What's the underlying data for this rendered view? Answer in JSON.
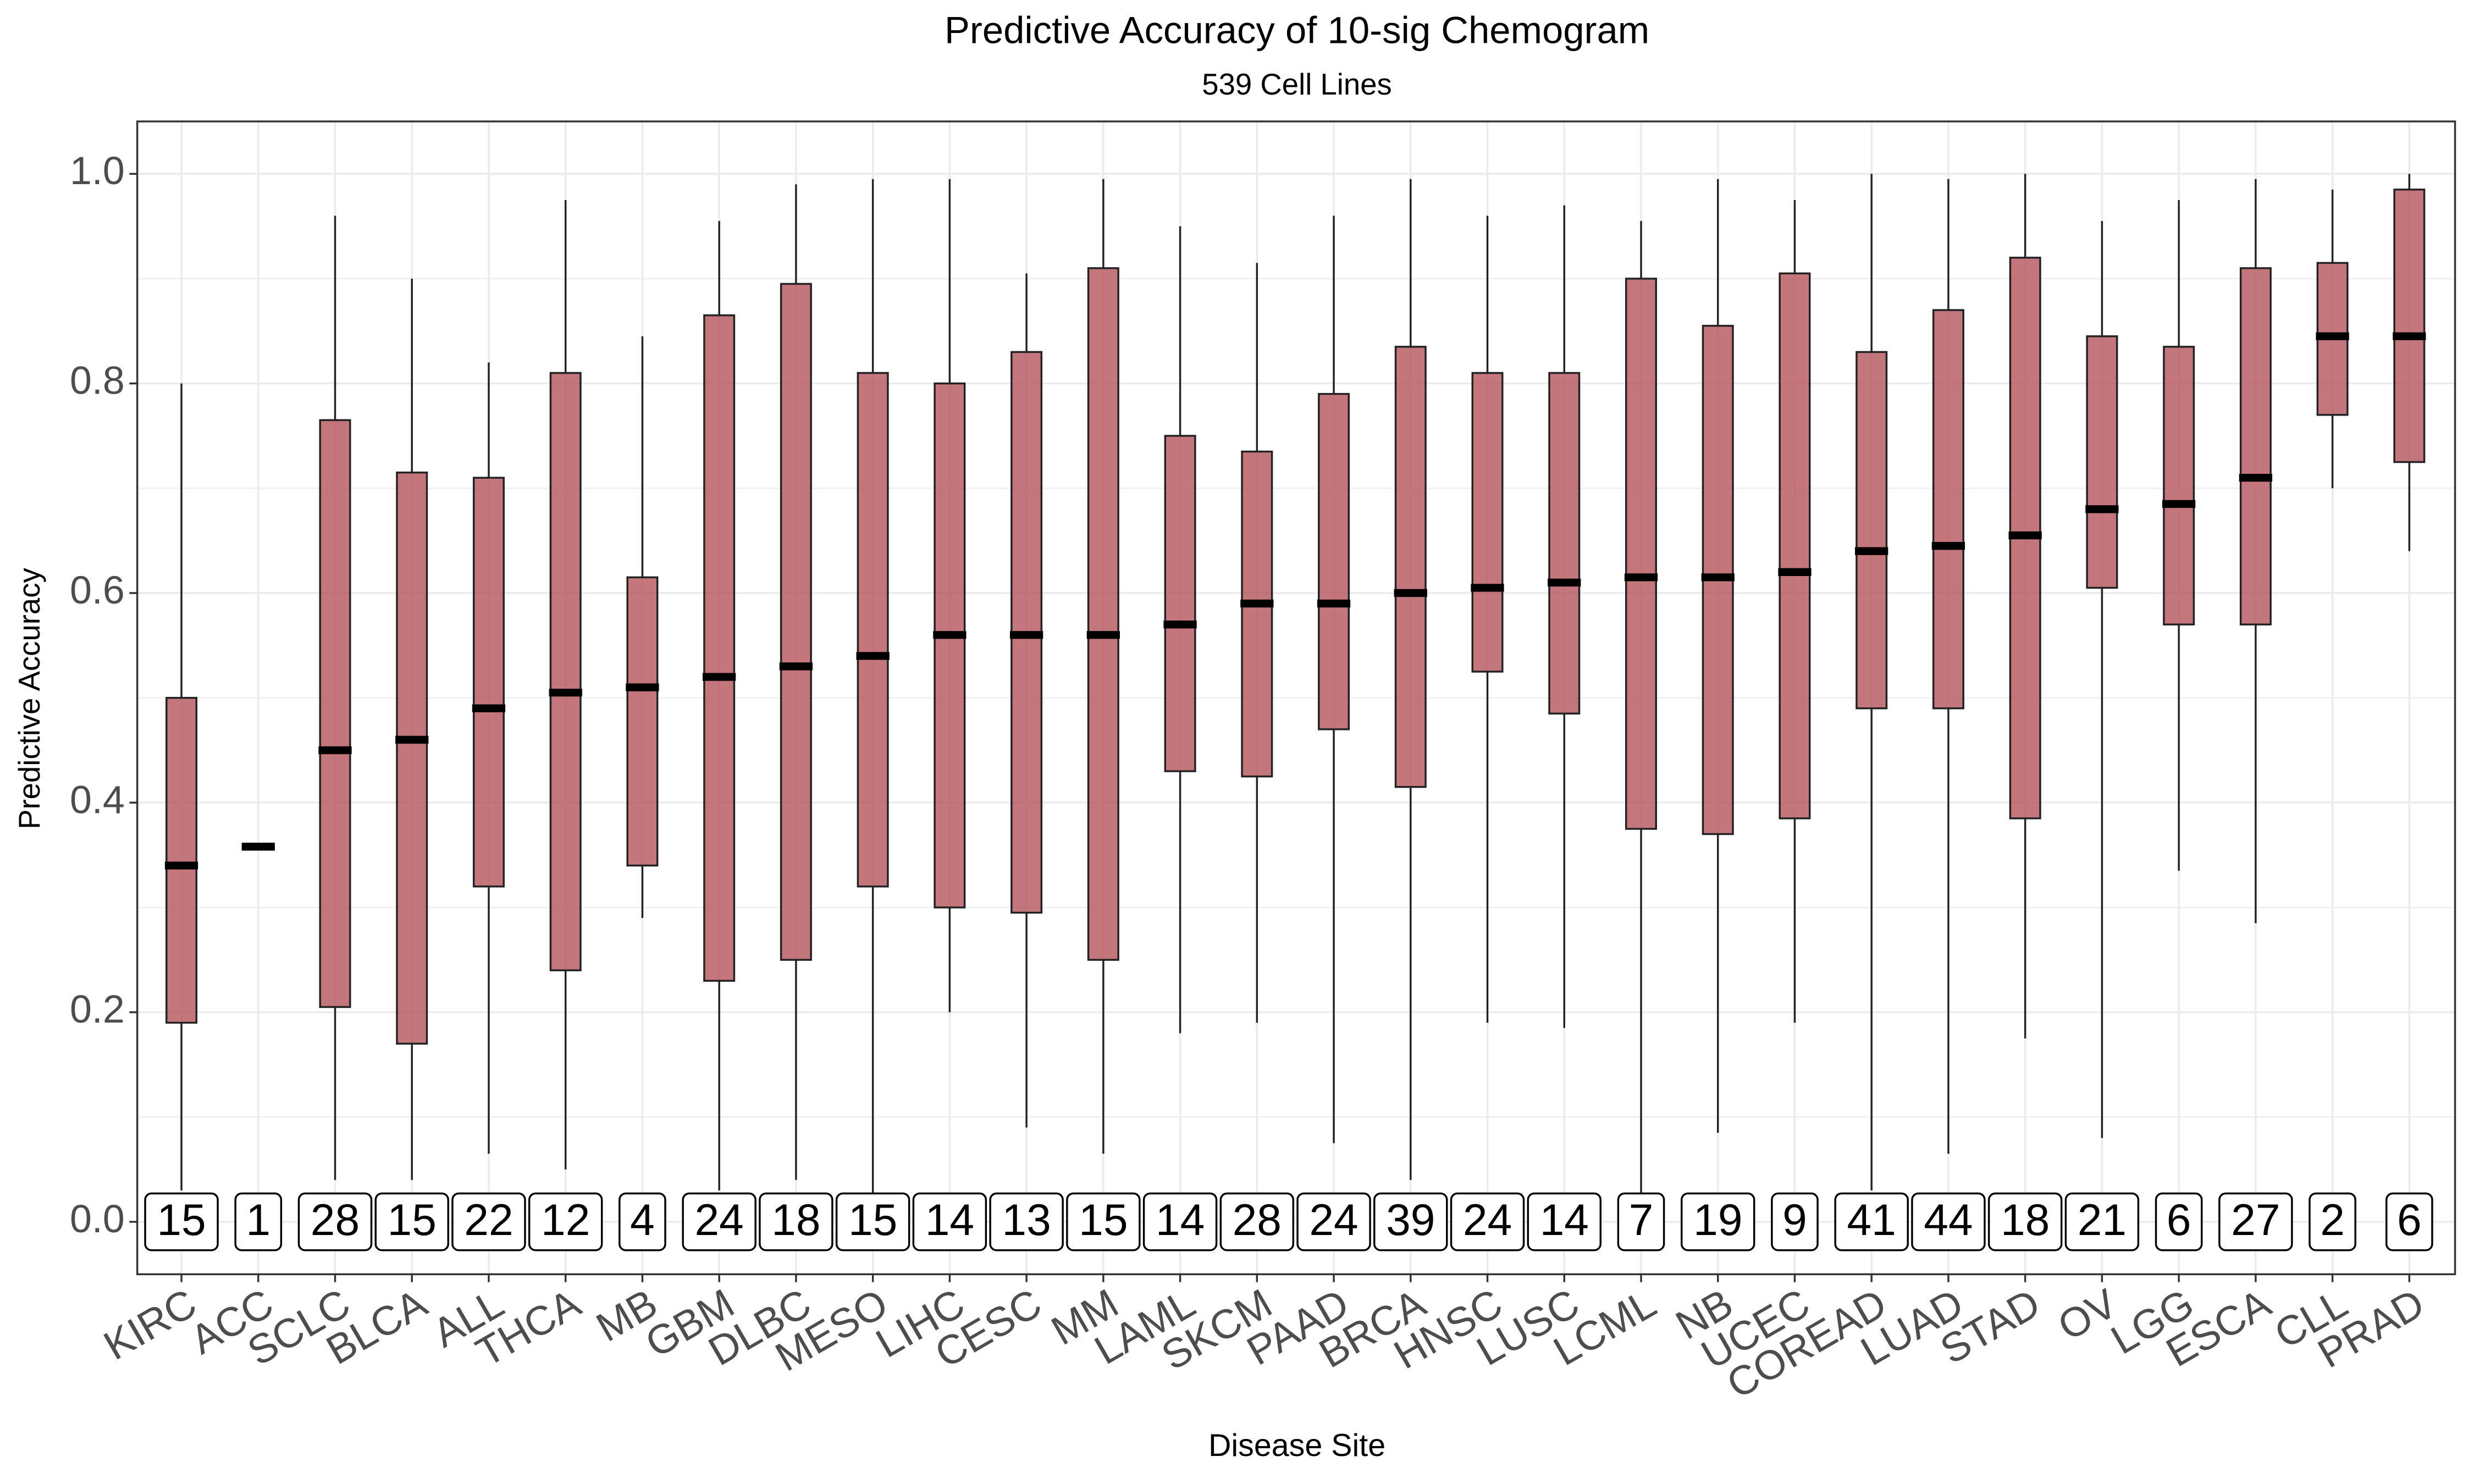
{
  "chart_data": {
    "type": "box",
    "title": "Predictive Accuracy of 10-sig Chemogram",
    "subtitle": "539 Cell Lines",
    "x_label": "Disease Site",
    "y_label": "Predictive Accuracy",
    "color": "#b5545c",
    "grid": true,
    "ylim": [
      -0.05,
      1.05
    ],
    "yticks": [
      {
        "value": 0,
        "label": "0.0"
      },
      {
        "value": 0.2,
        "label": "0.2"
      },
      {
        "value": 0.4,
        "label": "0.4"
      },
      {
        "value": 0.6,
        "label": "0.6"
      },
      {
        "value": 0.8,
        "label": "0.8"
      },
      {
        "value": 1,
        "label": "1.0"
      }
    ],
    "categories": [
      "KIRC",
      "ACC",
      "SCLC",
      "BLCA",
      "ALL",
      "THCA",
      "MB",
      "GBM",
      "DLBC",
      "MESO",
      "LIHC",
      "CESC",
      "MM",
      "LAML",
      "SKCM",
      "PAAD",
      "BRCA",
      "HNSC",
      "LUSC",
      "LCML",
      "NB",
      "UCEC",
      "COREAD",
      "LUAD",
      "STAD",
      "OV",
      "LGG",
      "ESCA",
      "CLL",
      "PRAD"
    ],
    "whisker_low": [
      0.03,
      0.36,
      0.04,
      0.04,
      0.065,
      0.05,
      0.29,
      0.03,
      0.04,
      0.0,
      0.2,
      0.09,
      0.065,
      0.18,
      0.19,
      0.075,
      0.04,
      0.19,
      0.185,
      0.0,
      0.085,
      0.19,
      0.03,
      0.065,
      0.175,
      0.08,
      0.335,
      0.285,
      0.7,
      0.64
    ],
    "q1": [
      0.19,
      0.356,
      0.205,
      0.17,
      0.32,
      0.24,
      0.34,
      0.23,
      0.25,
      0.32,
      0.3,
      0.295,
      0.25,
      0.43,
      0.425,
      0.47,
      0.415,
      0.525,
      0.485,
      0.375,
      0.37,
      0.385,
      0.49,
      0.49,
      0.385,
      0.605,
      0.57,
      0.57,
      0.77,
      0.725
    ],
    "median": [
      0.34,
      0.358,
      0.45,
      0.46,
      0.49,
      0.505,
      0.51,
      0.52,
      0.53,
      0.54,
      0.56,
      0.56,
      0.56,
      0.57,
      0.59,
      0.59,
      0.6,
      0.605,
      0.61,
      0.615,
      0.615,
      0.62,
      0.64,
      0.645,
      0.655,
      0.68,
      0.685,
      0.71,
      0.845,
      0.845
    ],
    "q3": [
      0.5,
      0.36,
      0.765,
      0.715,
      0.71,
      0.81,
      0.615,
      0.865,
      0.895,
      0.81,
      0.8,
      0.83,
      0.91,
      0.75,
      0.735,
      0.79,
      0.835,
      0.81,
      0.81,
      0.9,
      0.855,
      0.905,
      0.83,
      0.87,
      0.92,
      0.845,
      0.835,
      0.91,
      0.915,
      0.985
    ],
    "whisker_high": [
      0.8,
      0.36,
      0.96,
      0.9,
      0.82,
      0.975,
      0.845,
      0.955,
      0.99,
      0.995,
      0.995,
      0.905,
      0.995,
      0.95,
      0.915,
      0.96,
      0.995,
      0.96,
      0.97,
      0.955,
      0.995,
      0.975,
      1.0,
      0.995,
      1.0,
      0.955,
      0.975,
      0.995,
      0.985,
      1.0
    ],
    "counts": [
      15,
      1,
      28,
      15,
      22,
      12,
      4,
      24,
      18,
      15,
      14,
      13,
      15,
      14,
      28,
      24,
      39,
      24,
      14,
      7,
      19,
      9,
      41,
      44,
      18,
      21,
      6,
      27,
      2,
      6
    ]
  }
}
